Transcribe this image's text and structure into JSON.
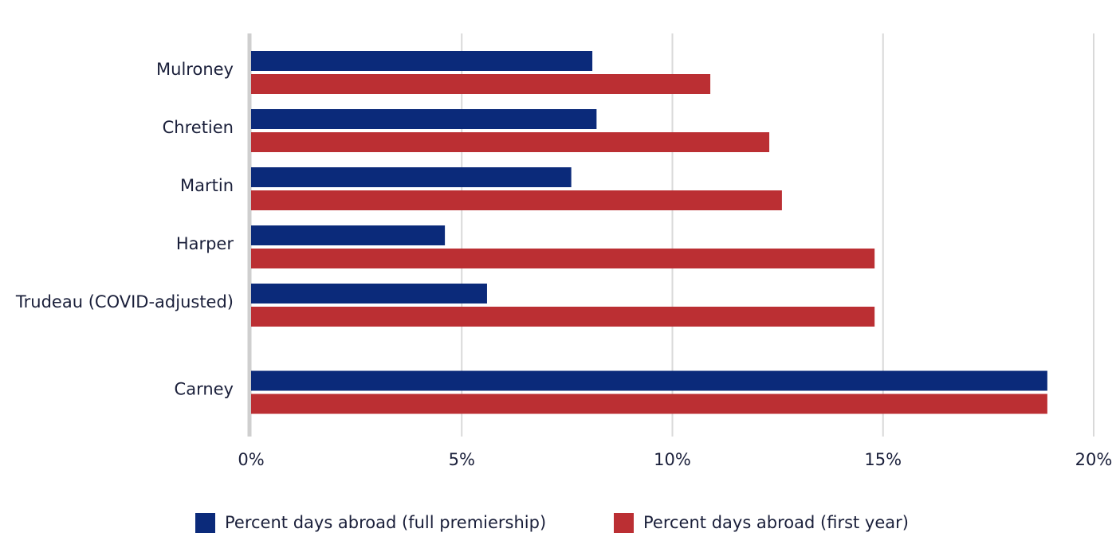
{
  "chart_data": {
    "type": "hbar",
    "categories": [
      "Mulroney",
      "Chretien",
      "Martin",
      "Harper",
      "Trudeau (COVID-adjusted)",
      "Carney"
    ],
    "series": [
      {
        "name": "Percent days abroad (full premiership)",
        "color": "#0b2a7a",
        "values": [
          8.1,
          8.2,
          7.6,
          4.6,
          5.6,
          18.9
        ]
      },
      {
        "name": "Percent days abroad (first year)",
        "color": "#bb2f33",
        "values": [
          10.9,
          12.3,
          12.6,
          14.8,
          14.8,
          18.9
        ]
      }
    ],
    "xlim": [
      0,
      20
    ],
    "xticks": [
      {
        "value": 0,
        "label": "0%"
      },
      {
        "value": 5,
        "label": "5%"
      },
      {
        "value": 10,
        "label": "10%"
      },
      {
        "value": 15,
        "label": "15%"
      },
      {
        "value": 20,
        "label": "20%"
      }
    ],
    "grid": true
  }
}
